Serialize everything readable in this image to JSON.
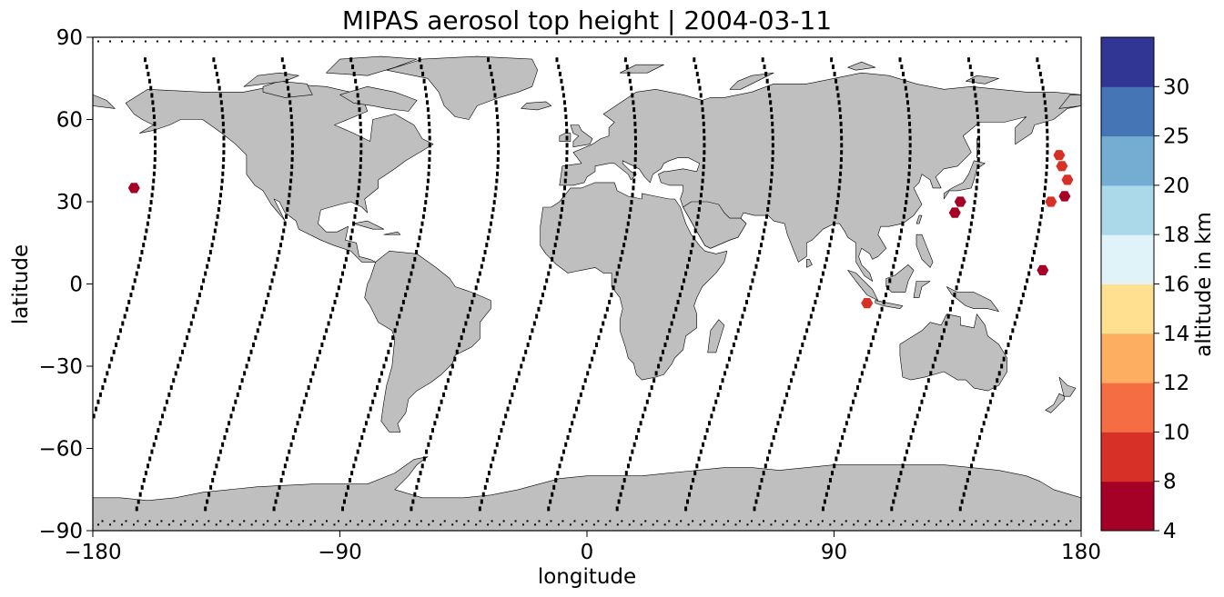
{
  "title": "MIPAS aerosol top height | 2004-03-11",
  "chart_data": {
    "type": "scatter",
    "title": "MIPAS aerosol top height | 2004-03-11",
    "xlabel": "longitude",
    "ylabel": "latitude",
    "xlim": [
      -180,
      180
    ],
    "ylim": [
      -90,
      90
    ],
    "x_ticks": [
      "−180",
      "−90",
      "0",
      "90",
      "180"
    ],
    "y_ticks": [
      "90",
      "60",
      "30",
      "0",
      "−30",
      "−60",
      "−90"
    ],
    "x_tick_values": [
      -180,
      -90,
      0,
      90,
      180
    ],
    "y_tick_values": [
      90,
      60,
      30,
      0,
      -30,
      -60,
      -90
    ],
    "grid": false,
    "colorbar": {
      "label": "altitude in km",
      "bounds": [
        4,
        8,
        10,
        12,
        14,
        16,
        18,
        20,
        25,
        30
      ],
      "tick_labels": [
        "4",
        "8",
        "10",
        "12",
        "14",
        "16",
        "18",
        "20",
        "25",
        "30"
      ],
      "colors": [
        "#a50026",
        "#d73027",
        "#f46d43",
        "#fdae61",
        "#fee090",
        "#e0f3f8",
        "#abd9e9",
        "#74add1",
        "#4575b4",
        "#313695"
      ]
    },
    "aerosol_points": [
      {
        "lon": -165,
        "lat": 35,
        "altitude_km": 6
      },
      {
        "lon": 102,
        "lat": -7,
        "altitude_km": 9
      },
      {
        "lon": 136,
        "lat": 30,
        "altitude_km": 6
      },
      {
        "lon": 134,
        "lat": 26,
        "altitude_km": 6
      },
      {
        "lon": 166,
        "lat": 5,
        "altitude_km": 6
      },
      {
        "lon": 169,
        "lat": 30,
        "altitude_km": 9
      },
      {
        "lon": 172,
        "lat": 47,
        "altitude_km": 9
      },
      {
        "lon": 173,
        "lat": 43,
        "altitude_km": 9
      },
      {
        "lon": 175,
        "lat": 38,
        "altitude_km": 9
      },
      {
        "lon": 174,
        "lat": 32,
        "altitude_km": 7
      }
    ],
    "orbit_track_centers_lon": [
      -165,
      -140,
      -115,
      -90,
      -65,
      -40,
      -15,
      10,
      35,
      60,
      85,
      110,
      135,
      160
    ],
    "map": {
      "land_color": "#bfbfbf",
      "coast_color": "#000000",
      "marker_color": "#000000"
    }
  }
}
